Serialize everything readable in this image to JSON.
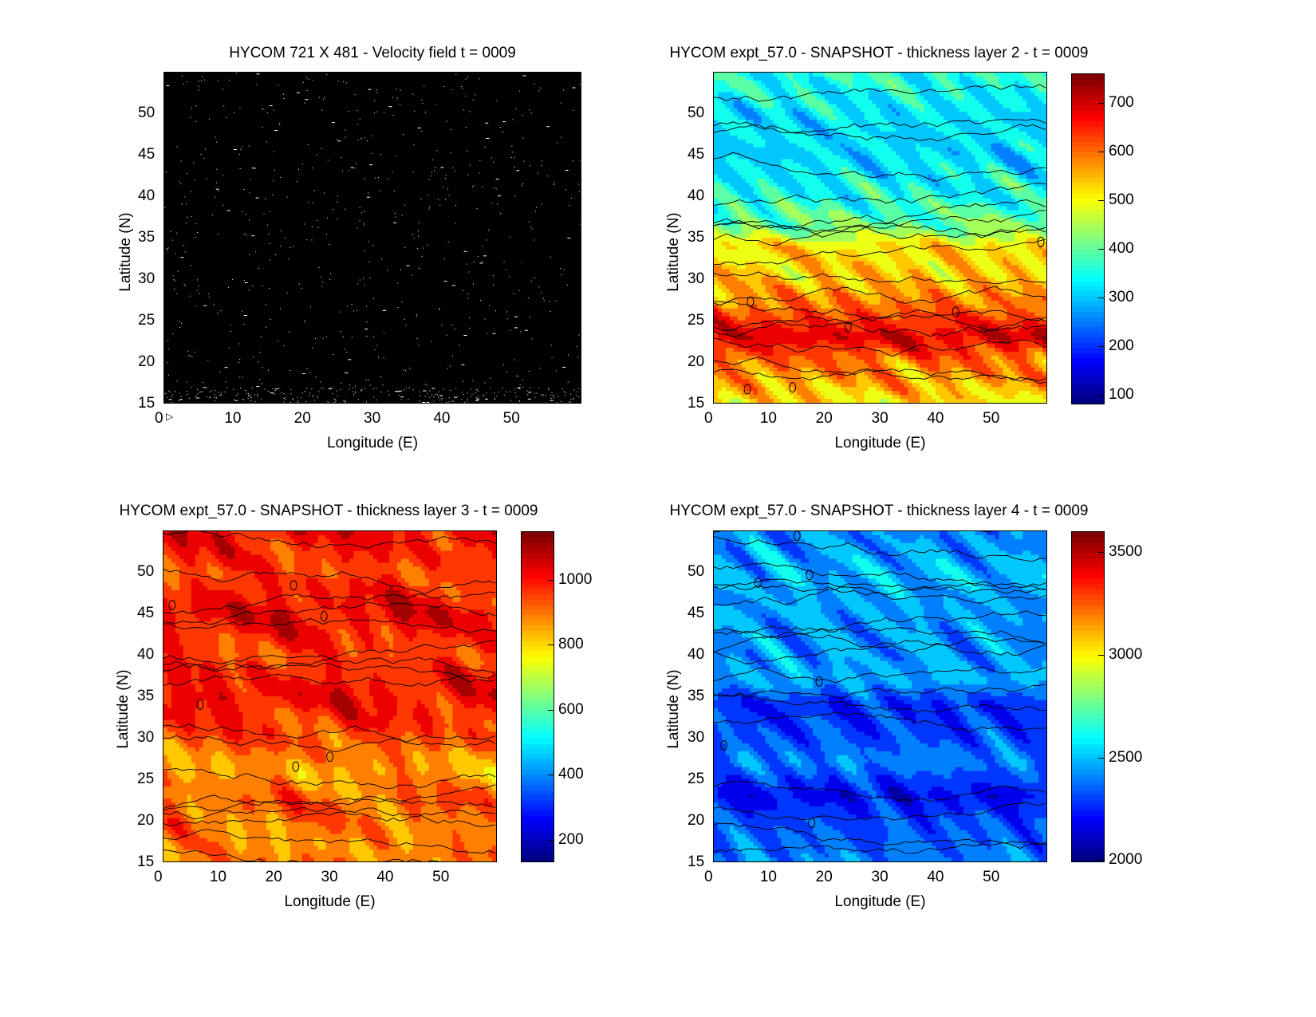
{
  "chart_data": [
    {
      "type": "heatmap",
      "id": "velocity",
      "title": "HYCOM 721 X 481 - Velocity field  t = 0009",
      "xlabel": "Longitude (E)",
      "ylabel": "Latitude (N)",
      "xlim": [
        0,
        60
      ],
      "ylim": [
        15,
        55
      ],
      "xticks": [
        "0",
        "10",
        "20",
        "30",
        "40",
        "50"
      ],
      "yticks": [
        "15",
        "20",
        "25",
        "30",
        "35",
        "40",
        "45",
        "50"
      ],
      "background": "#000000",
      "marks_color": "#ffffff",
      "colorbar": null
    },
    {
      "type": "heatmap",
      "id": "layer2",
      "title": "HYCOM expt_57.0 - SNAPSHOT - thickness layer 2 - t = 0009",
      "xlabel": "Longitude (E)",
      "ylabel": "Latitude (N)",
      "xlim": [
        0,
        60
      ],
      "ylim": [
        15,
        55
      ],
      "xticks": [
        "0",
        "10",
        "20",
        "30",
        "40",
        "50"
      ],
      "yticks": [
        "15",
        "20",
        "25",
        "30",
        "35",
        "40",
        "45",
        "50"
      ],
      "colorbar": {
        "range": [
          80,
          760
        ],
        "ticks": [
          "100",
          "200",
          "300",
          "400",
          "500",
          "600",
          "700"
        ]
      },
      "bands": [
        {
          "lat": 55,
          "value": 360
        },
        {
          "lat": 50,
          "value": 320
        },
        {
          "lat": 45,
          "value": 310
        },
        {
          "lat": 40,
          "value": 350
        },
        {
          "lat": 36,
          "value": 420
        },
        {
          "lat": 34,
          "value": 520
        },
        {
          "lat": 30,
          "value": 540
        },
        {
          "lat": 26,
          "value": 620
        },
        {
          "lat": 23,
          "value": 700
        },
        {
          "lat": 20,
          "value": 600
        },
        {
          "lat": 15,
          "value": 520
        }
      ]
    },
    {
      "type": "heatmap",
      "id": "layer3",
      "title": "HYCOM expt_57.0 - SNAPSHOT - thickness layer 3 - t = 0009",
      "xlabel": "Longitude (E)",
      "ylabel": "Latitude (N)",
      "xlim": [
        0,
        60
      ],
      "ylim": [
        15,
        55
      ],
      "xticks": [
        "0",
        "10",
        "20",
        "30",
        "40",
        "50"
      ],
      "yticks": [
        "15",
        "20",
        "25",
        "30",
        "35",
        "40",
        "45",
        "50"
      ],
      "colorbar": {
        "range": [
          130,
          1150
        ],
        "ticks": [
          "200",
          "400",
          "600",
          "800",
          "1000"
        ]
      },
      "bands": [
        {
          "lat": 55,
          "value": 1030
        },
        {
          "lat": 50,
          "value": 960
        },
        {
          "lat": 45,
          "value": 1040
        },
        {
          "lat": 40,
          "value": 960
        },
        {
          "lat": 35,
          "value": 1030
        },
        {
          "lat": 30,
          "value": 950
        },
        {
          "lat": 26,
          "value": 860
        },
        {
          "lat": 22,
          "value": 930
        },
        {
          "lat": 17,
          "value": 880
        },
        {
          "lat": 15,
          "value": 900
        }
      ]
    },
    {
      "type": "heatmap",
      "id": "layer4",
      "title": "HYCOM expt_57.0 - SNAPSHOT - thickness layer 4 - t = 0009",
      "xlabel": "Longitude (E)",
      "ylabel": "Latitude (N)",
      "xlim": [
        0,
        60
      ],
      "ylim": [
        15,
        55
      ],
      "xticks": [
        "0",
        "10",
        "20",
        "30",
        "40",
        "50"
      ],
      "yticks": [
        "15",
        "20",
        "25",
        "30",
        "35",
        "40",
        "45",
        "50"
      ],
      "colorbar": {
        "range": [
          1990,
          3600
        ],
        "ticks": [
          "2000",
          "2500",
          "3000",
          "3500"
        ]
      },
      "bands": [
        {
          "lat": 55,
          "value": 2400
        },
        {
          "lat": 50,
          "value": 2480
        },
        {
          "lat": 45,
          "value": 2440
        },
        {
          "lat": 40,
          "value": 2420
        },
        {
          "lat": 37,
          "value": 2470
        },
        {
          "lat": 34,
          "value": 2240
        },
        {
          "lat": 30,
          "value": 2300
        },
        {
          "lat": 27,
          "value": 2400
        },
        {
          "lat": 23,
          "value": 2170
        },
        {
          "lat": 20,
          "value": 2300
        },
        {
          "lat": 15,
          "value": 2400
        }
      ]
    }
  ]
}
